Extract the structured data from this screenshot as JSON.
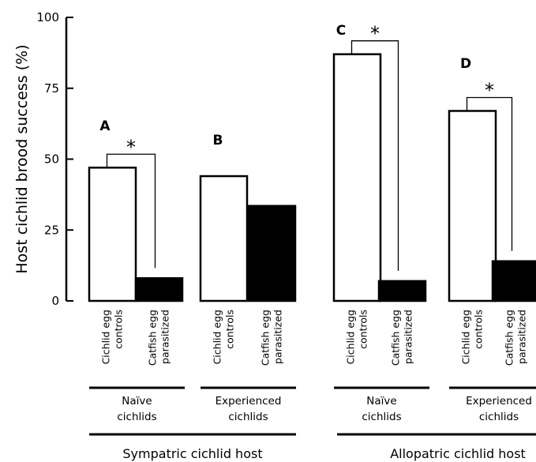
{
  "chart_data": {
    "type": "bar",
    "ylabel": "Host cichlid brood success (%)",
    "ylim": [
      0,
      100
    ],
    "yticks": [
      0,
      25,
      50,
      75,
      100
    ],
    "categories": [
      "Cichlid egg controls",
      "Catfish egg parasitized"
    ],
    "category_lines": [
      [
        "Cichlid egg",
        "controls"
      ],
      [
        "Catfish egg",
        "parasitized"
      ]
    ],
    "bar_fills": [
      "#ffffff",
      "#000000"
    ],
    "bar_stroke": "#000000",
    "panels": [
      {
        "label": "A",
        "group": [
          "Naïve",
          "cichlids"
        ],
        "host": "Sympatric cichlid host",
        "values": [
          47,
          8
        ],
        "significance": "*"
      },
      {
        "label": "B",
        "group": [
          "Experienced",
          "cichlids"
        ],
        "host": "Sympatric cichlid host",
        "values": [
          44,
          33.5
        ],
        "significance": ""
      },
      {
        "label": "C",
        "group": [
          "Naïve",
          "cichlids"
        ],
        "host": "Allopatric cichlid host",
        "values": [
          87,
          7
        ],
        "significance": "*"
      },
      {
        "label": "D",
        "group": [
          "Experienced",
          "cichlids"
        ],
        "host": "Allopatric cichlid host",
        "values": [
          67,
          14
        ],
        "significance": "*"
      }
    ],
    "hosts": [
      "Sympatric cichlid host",
      "Allopatric cichlid host"
    ]
  }
}
